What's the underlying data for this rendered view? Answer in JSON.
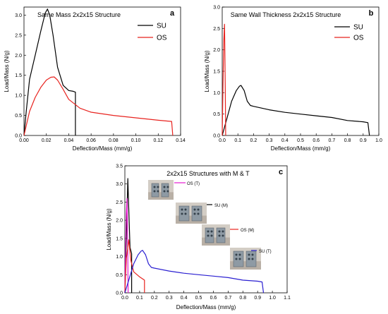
{
  "chart_data": [
    {
      "type": "line",
      "panel": "a",
      "title": "Same Mass 2x2x15 Structure",
      "xlabel": "Deflection/Mass (mm/g)",
      "ylabel": "Load/Mass (N/g)",
      "xlim": [
        0,
        0.14
      ],
      "ylim": [
        0,
        3.2
      ],
      "xticks": [
        "0.00",
        "0.02",
        "0.04",
        "0.06",
        "0.08",
        "0.10",
        "0.12",
        "0.14"
      ],
      "yticks": [
        "0.0",
        "0.5",
        "1.0",
        "1.5",
        "2.0",
        "2.5",
        "3.0"
      ],
      "legend_position": "top-right",
      "grid": false,
      "series": [
        {
          "name": "SU",
          "color": "#000000",
          "x": [
            0,
            0.002,
            0.005,
            0.01,
            0.015,
            0.019,
            0.021,
            0.023,
            0.026,
            0.03,
            0.035,
            0.04,
            0.044,
            0.046,
            0.046
          ],
          "y": [
            0,
            0.6,
            1.4,
            2.0,
            2.6,
            3.05,
            3.15,
            3.0,
            2.5,
            1.7,
            1.25,
            1.12,
            1.1,
            1.08,
            0
          ]
        },
        {
          "name": "OS",
          "color": "#e8231f",
          "x": [
            0,
            0.005,
            0.01,
            0.015,
            0.02,
            0.024,
            0.027,
            0.03,
            0.035,
            0.04,
            0.05,
            0.06,
            0.08,
            0.1,
            0.12,
            0.132,
            0.133
          ],
          "y": [
            0,
            0.6,
            0.95,
            1.2,
            1.38,
            1.45,
            1.46,
            1.38,
            1.15,
            0.9,
            0.68,
            0.58,
            0.5,
            0.44,
            0.38,
            0.35,
            0
          ]
        }
      ]
    },
    {
      "type": "line",
      "panel": "b",
      "title": "Same Wall Thickness 2x2x15 Structure",
      "xlabel": "Deflection/Mass (mm/g)",
      "ylabel": "Load/Mass (N/g)",
      "xlim": [
        0,
        1.0
      ],
      "ylim": [
        0,
        3.0
      ],
      "xticks": [
        "0.0",
        "0.1",
        "0.2",
        "0.3",
        "0.4",
        "0.5",
        "0.6",
        "0.7",
        "0.8",
        "0.9",
        "1.0"
      ],
      "yticks": [
        "0.0",
        "0.5",
        "1.0",
        "1.5",
        "2.0",
        "2.5",
        "3.0"
      ],
      "legend_position": "top-right",
      "grid": false,
      "series": [
        {
          "name": "SU",
          "color": "#000000",
          "x": [
            0,
            0.03,
            0.06,
            0.09,
            0.11,
            0.12,
            0.14,
            0.16,
            0.18,
            0.2,
            0.3,
            0.4,
            0.5,
            0.6,
            0.7,
            0.8,
            0.9,
            0.93,
            0.94
          ],
          "y": [
            0,
            0.4,
            0.8,
            1.05,
            1.15,
            1.17,
            1.05,
            0.8,
            0.7,
            0.68,
            0.6,
            0.54,
            0.5,
            0.46,
            0.42,
            0.35,
            0.32,
            0.3,
            0
          ]
        },
        {
          "name": "OS",
          "color": "#e8231f",
          "x": [
            0,
            0.005,
            0.01,
            0.015,
            0.02,
            0.022
          ],
          "y": [
            0,
            1.2,
            2.2,
            2.6,
            1.0,
            0
          ]
        }
      ]
    },
    {
      "type": "line",
      "panel": "c",
      "title": "2x2x15 Structures with M & T",
      "xlabel": "Deflection/Mass (mm/g)",
      "ylabel": "Load/Mass (N/g)",
      "xlim": [
        0,
        1.1
      ],
      "ylim": [
        0,
        3.5
      ],
      "xticks": [
        "0.0",
        "0.1",
        "0.2",
        "0.3",
        "0.4",
        "0.5",
        "0.6",
        "0.7",
        "0.8",
        "0.9",
        "1.0",
        "1.1"
      ],
      "yticks": [
        "0.0",
        "0.5",
        "1.0",
        "1.5",
        "2.0",
        "2.5",
        "3.0",
        "3.5"
      ],
      "grid": false,
      "series": [
        {
          "name": "SU (M)",
          "color": "#000000",
          "x": [
            0,
            0.01,
            0.02,
            0.025,
            0.035,
            0.046,
            0.046
          ],
          "y": [
            0,
            1.5,
            3.15,
            2.5,
            1.25,
            1.08,
            0
          ]
        },
        {
          "name": "OS (T)",
          "color": "#e61ad0",
          "x": [
            0,
            0.005,
            0.01,
            0.015,
            0.02,
            0.022
          ],
          "y": [
            0,
            1.2,
            2.2,
            2.6,
            1.0,
            0
          ]
        },
        {
          "name": "OS (M)",
          "color": "#e8231f",
          "x": [
            0,
            0.01,
            0.027,
            0.04,
            0.06,
            0.1,
            0.133,
            0.133
          ],
          "y": [
            0,
            0.95,
            1.46,
            0.9,
            0.58,
            0.44,
            0.35,
            0
          ]
        },
        {
          "name": "SU  (T)",
          "color": "#2a1fd1",
          "x": [
            0,
            0.03,
            0.06,
            0.09,
            0.11,
            0.12,
            0.14,
            0.16,
            0.18,
            0.2,
            0.3,
            0.4,
            0.5,
            0.6,
            0.7,
            0.8,
            0.9,
            0.93,
            0.94
          ],
          "y": [
            0,
            0.4,
            0.8,
            1.05,
            1.15,
            1.17,
            1.05,
            0.8,
            0.7,
            0.68,
            0.6,
            0.54,
            0.5,
            0.46,
            0.42,
            0.35,
            0.32,
            0.3,
            0
          ]
        }
      ]
    }
  ]
}
